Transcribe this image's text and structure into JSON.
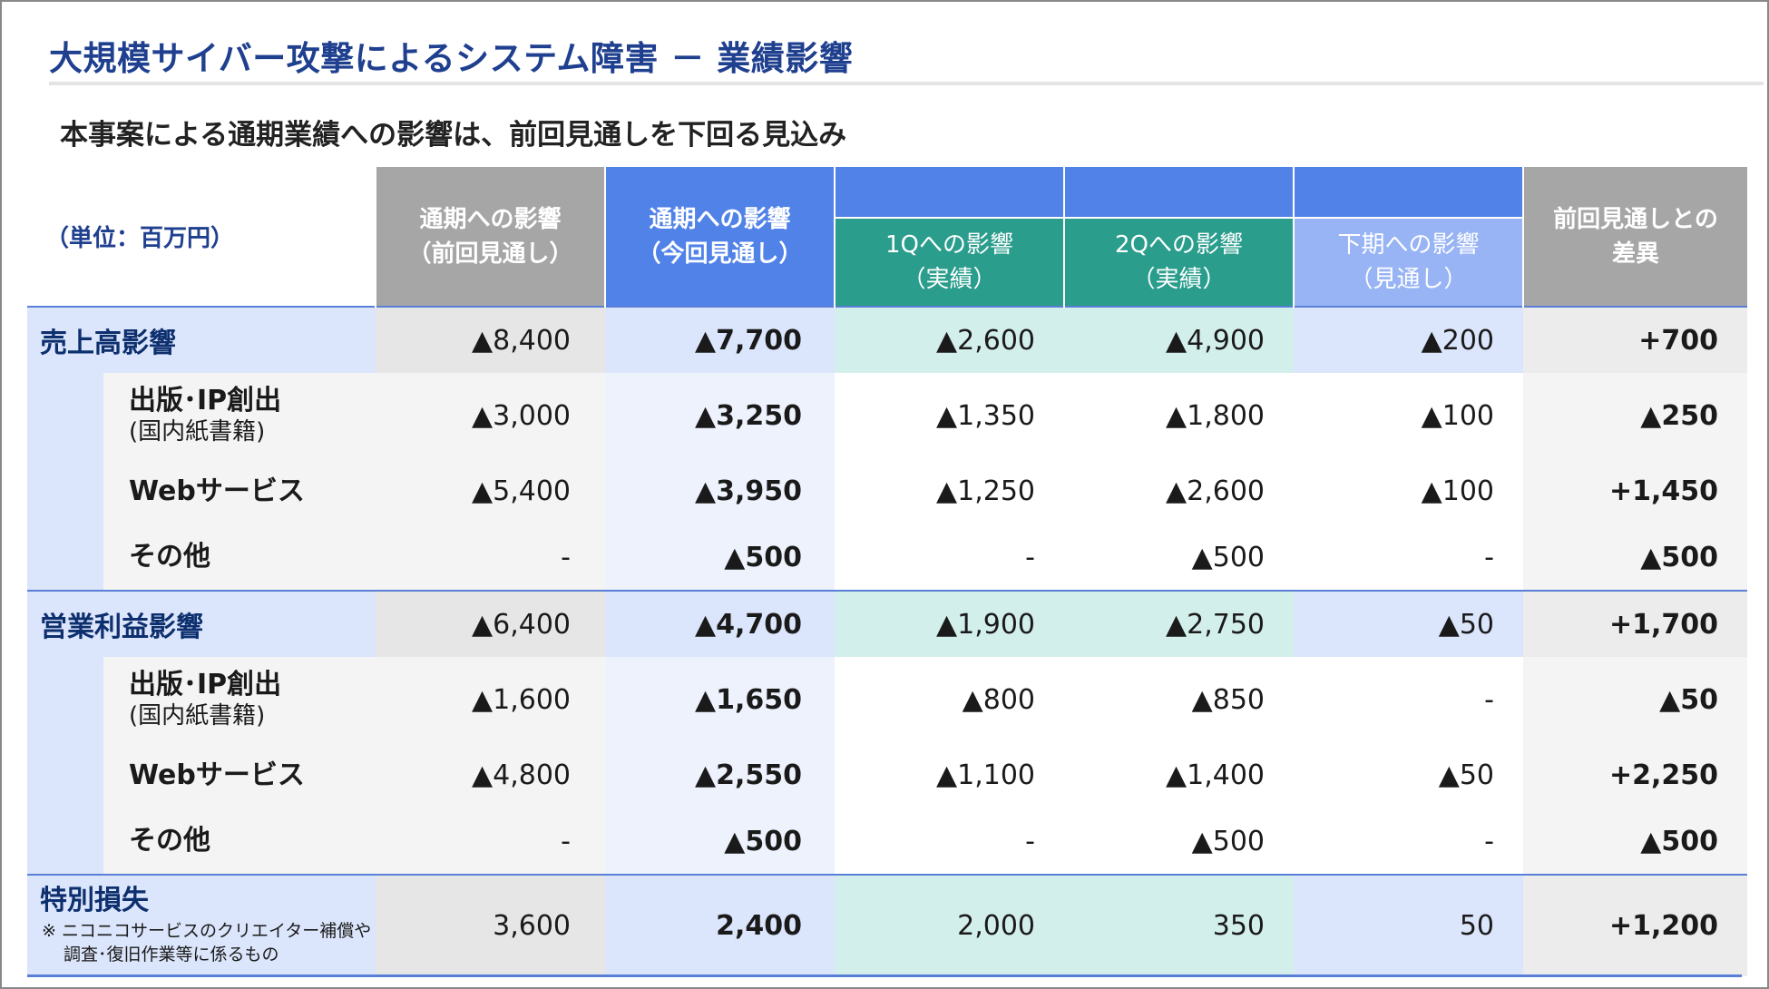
{
  "title": "大規模サイバー攻撃によるシステム障害 － 業績影響",
  "subtitle": "本事案による通期業績への影響は、前回見通しを下回る見込み",
  "unit": "（単位：百万円）",
  "headers": {
    "prev_line1": "通期への影響",
    "prev_line2": "（前回見通し）",
    "cur_line1": "通期への影響",
    "cur_line2": "（今回見通し）",
    "q1_line1": "1Qへの影響",
    "q1_line2": "（実績）",
    "q2_line1": "2Qへの影響",
    "q2_line2": "（実績）",
    "h2_line1": "下期への影響",
    "h2_line2": "（見通し）",
    "diff_line1": "前回見通しとの",
    "diff_line2": "差異"
  },
  "rows": [
    {
      "label": "売上高影響",
      "sub": "",
      "values": [
        "▲8,400",
        "▲7,700",
        "▲2,600",
        "▲4,900",
        "▲200",
        "+700"
      ]
    },
    {
      "label": "出版･IP創出",
      "sub": "(国内紙書籍)",
      "values": [
        "▲3,000",
        "▲3,250",
        "▲1,350",
        "▲1,800",
        "▲100",
        "▲250"
      ]
    },
    {
      "label": "Webサービス",
      "sub": "",
      "values": [
        "▲5,400",
        "▲3,950",
        "▲1,250",
        "▲2,600",
        "▲100",
        "+1,450"
      ]
    },
    {
      "label": "その他",
      "sub": "",
      "values": [
        "-",
        "▲500",
        "-",
        "▲500",
        "-",
        "▲500"
      ]
    },
    {
      "label": "営業利益影響",
      "sub": "",
      "values": [
        "▲6,400",
        "▲4,700",
        "▲1,900",
        "▲2,750",
        "▲50",
        "+1,700"
      ]
    },
    {
      "label": "出版･IP創出",
      "sub": "(国内紙書籍)",
      "values": [
        "▲1,600",
        "▲1,650",
        "▲800",
        "▲850",
        "-",
        "▲50"
      ]
    },
    {
      "label": "Webサービス",
      "sub": "",
      "values": [
        "▲4,800",
        "▲2,550",
        "▲1,100",
        "▲1,400",
        "▲50",
        "+2,250"
      ]
    },
    {
      "label": "その他",
      "sub": "",
      "values": [
        "-",
        "▲500",
        "-",
        "▲500",
        "-",
        "▲500"
      ]
    },
    {
      "label": "特別損失",
      "note1": "※ ニコニコサービスのクリエイター補償や",
      "note2": "調査･復旧作業等に係るもの",
      "values": [
        "3,600",
        "2,400",
        "2,000",
        "350",
        "50",
        "+1,200"
      ]
    }
  ],
  "colors": {
    "title": "#1f3f8f",
    "header_gray": "#a6a6a6",
    "header_blue": "#5182e8",
    "header_teal": "#2a9d8c",
    "header_lightblue": "#98b4f5"
  }
}
